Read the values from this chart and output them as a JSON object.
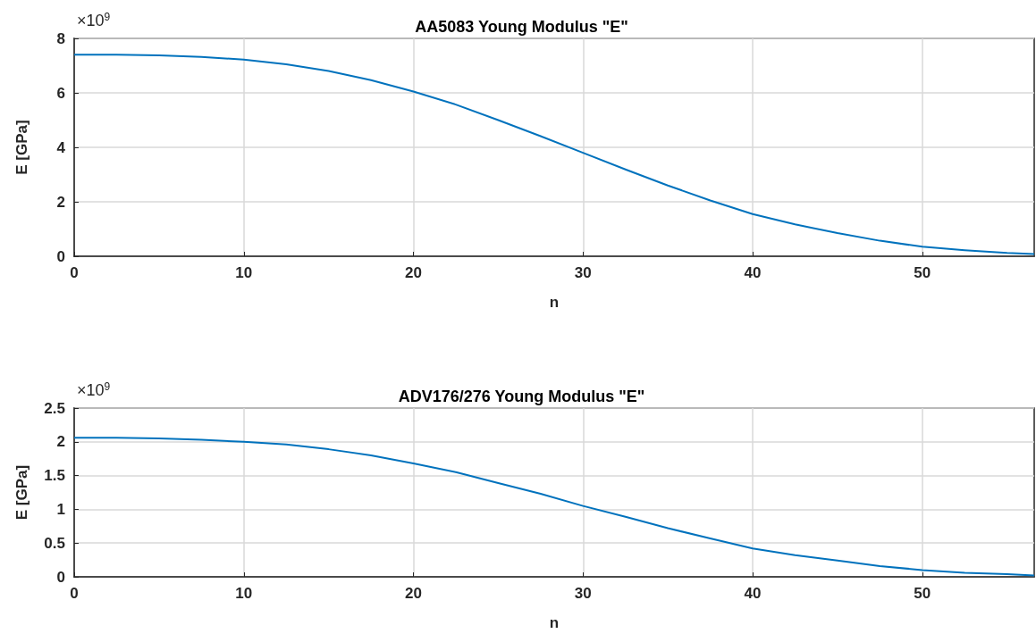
{
  "chart_data": [
    {
      "type": "line",
      "title": "AA5083 Young Modulus \"E\"",
      "xlabel": "n",
      "ylabel": "E [GPa]",
      "annotations": [
        "×10$^{9}$"
      ],
      "x": [
        0,
        2.5,
        5,
        7.5,
        10,
        12.5,
        15,
        17.5,
        20,
        22.5,
        25,
        27.5,
        30,
        32.5,
        35,
        37.5,
        40,
        42.5,
        45,
        47.5,
        50,
        52.5,
        55,
        56.6
      ],
      "series": [
        {
          "color": "#0072bd",
          "values": [
            7.4,
            7.4,
            7.38,
            7.32,
            7.22,
            7.05,
            6.8,
            6.47,
            6.05,
            5.57,
            5.0,
            4.41,
            3.8,
            3.19,
            2.6,
            2.05,
            1.55,
            1.17,
            0.85,
            0.57,
            0.35,
            0.22,
            0.12,
            0.08
          ]
        }
      ],
      "xlim": [
        0,
        56.6
      ],
      "xticks": [
        0,
        10,
        20,
        30,
        40,
        50
      ],
      "ylim": [
        0,
        8
      ],
      "yticks": [
        0,
        2,
        4,
        6,
        8
      ],
      "grid": true,
      "marker": "none",
      "line_style": "solid"
    },
    {
      "type": "line",
      "title": "ADV176/276 Young Modulus \"E\"",
      "xlabel": "n",
      "ylabel": "E [GPa]",
      "annotations": [
        "×10$^{9}$"
      ],
      "x": [
        0,
        2.5,
        5,
        7.5,
        10,
        12.5,
        15,
        17.5,
        20,
        22.5,
        25,
        27.5,
        30,
        32.5,
        35,
        37.5,
        40,
        42.5,
        45,
        47.5,
        50,
        52.5,
        55,
        56.6
      ],
      "series": [
        {
          "color": "#0072bd",
          "values": [
            2.06,
            2.06,
            2.05,
            2.03,
            2.0,
            1.96,
            1.89,
            1.8,
            1.68,
            1.55,
            1.39,
            1.23,
            1.05,
            0.89,
            0.72,
            0.57,
            0.42,
            0.32,
            0.24,
            0.16,
            0.1,
            0.06,
            0.04,
            0.02
          ]
        }
      ],
      "xlim": [
        0,
        56.6
      ],
      "xticks": [
        0,
        10,
        20,
        30,
        40,
        50
      ],
      "ylim": [
        0,
        2.5
      ],
      "yticks": [
        0,
        0.5,
        1,
        1.5,
        2,
        2.5
      ],
      "grid": true,
      "marker": "none",
      "line_style": "solid"
    }
  ]
}
